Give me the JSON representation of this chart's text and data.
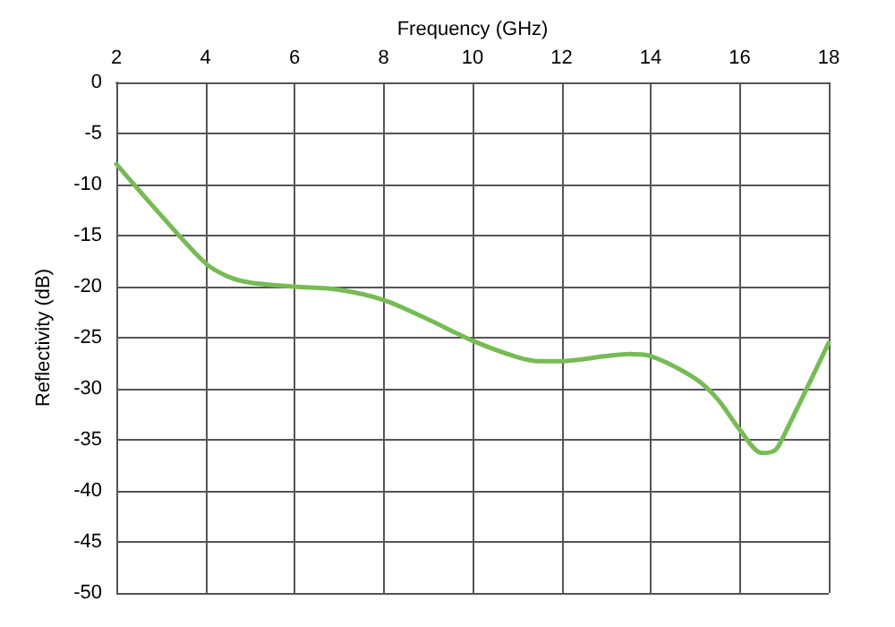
{
  "chart_data": {
    "type": "line",
    "xlabel": "Frequency (GHz)",
    "ylabel": "Reflectivity (dB)",
    "x": [
      2,
      3,
      4,
      4.5,
      5,
      6,
      7,
      8,
      9,
      10,
      11,
      11.5,
      12,
      13,
      13.5,
      14,
      15,
      15.5,
      16,
      16.5,
      16.8,
      17,
      18
    ],
    "series": [
      {
        "color": "#77bb55",
        "values": [
          -8,
          -13,
          -17.7,
          -19,
          -19.6,
          -20,
          -20.3,
          -21.3,
          -23.2,
          -25.3,
          -26.9,
          -27.3,
          -27.3,
          -26.8,
          -26.6,
          -26.8,
          -29,
          -31,
          -34,
          -36.3,
          -36,
          -34.5,
          -25.5
        ]
      }
    ],
    "xlim": [
      2,
      18
    ],
    "xticks": [
      2,
      4,
      6,
      8,
      10,
      12,
      14,
      16,
      18
    ],
    "ylim": [
      -50,
      0
    ],
    "yticks": [
      -50,
      -45,
      -40,
      -35,
      -30,
      -25,
      -20,
      -15,
      -10,
      -5,
      0
    ],
    "grid": true,
    "marker": "none",
    "line_style": "solid"
  }
}
